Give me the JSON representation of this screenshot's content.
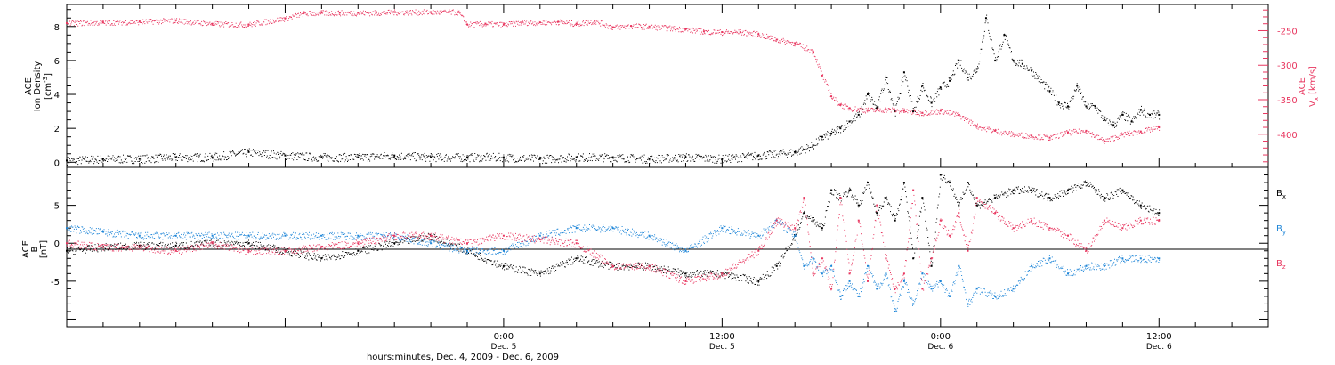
{
  "colors": {
    "black": "#000000",
    "pink": "#e8365f",
    "blue": "#1f86d8"
  },
  "xaxis": {
    "title": "hours:minutes, Dec. 4, 2009 - Dec. 6, 2009",
    "ticks": [
      {
        "hour": 24,
        "time": "0:00",
        "date": "Dec. 5"
      },
      {
        "hour": 36,
        "time": "12:00",
        "date": "Dec. 5"
      },
      {
        "hour": 48,
        "time": "0:00",
        "date": "Dec. 6"
      },
      {
        "hour": 60,
        "time": "12:00",
        "date": "Dec. 6"
      }
    ]
  },
  "panel_top": {
    "left_label_line1": "ACE",
    "left_label_line2": "Ion Density",
    "left_label_units": "[cm",
    "left_label_sup": "-3",
    "left_label_close": "]",
    "right_label_line1": "ACE",
    "right_label_main": "V",
    "right_label_sub": "x",
    "right_label_units": "[km/s]",
    "left_ticks": [
      "0",
      "2",
      "4",
      "6",
      "8"
    ],
    "right_ticks": [
      "-250",
      "-300",
      "-350",
      "-400"
    ]
  },
  "panel_bottom": {
    "label_line1": "ACE",
    "label_main": "B",
    "label_units": "[nT]",
    "ticks": [
      "5",
      "0",
      "-5"
    ],
    "legend": [
      {
        "main": "B",
        "sub": "x",
        "color": "#000000"
      },
      {
        "main": "B",
        "sub": "y",
        "color": "#1f86d8"
      },
      {
        "main": "B",
        "sub": "z",
        "color": "#e8365f"
      }
    ]
  },
  "chart_data": [
    {
      "type": "scatter",
      "xlabel": "hours:minutes, Dec. 4, 2009 - Dec. 6, 2009",
      "xlim": [
        "Dec. 4 00:00",
        "Dec. 6 18:00"
      ],
      "y_left_label": "ACE Ion Density [cm-3]",
      "ylim_left": [
        -0.3,
        9.3
      ],
      "y_right_label": "ACE Vx [km/s]",
      "ylim_right": [
        -448,
        -212
      ],
      "series": [
        {
          "name": "Ion Density",
          "axis": "left",
          "color": "#000000",
          "x": [
            0,
            2,
            4,
            6,
            8,
            10,
            12,
            14,
            16,
            18,
            20,
            22,
            24,
            26,
            28,
            30,
            32,
            34,
            36,
            38,
            40,
            41,
            41.5,
            42,
            42.5,
            43,
            43.5,
            44,
            44.5,
            45,
            45.5,
            46,
            46.5,
            47,
            47.5,
            48,
            48.5,
            49,
            49.5,
            50,
            50.5,
            51,
            51.5,
            52,
            52.5,
            53,
            54,
            54.5,
            55,
            55.5,
            56,
            56.5,
            57,
            57.5,
            58,
            58.5,
            59,
            59.5,
            60
          ],
          "y": [
            0.1,
            0.2,
            0.2,
            0.3,
            0.3,
            0.6,
            0.4,
            0.3,
            0.3,
            0.4,
            0.3,
            0.3,
            0.3,
            0.2,
            0.3,
            0.3,
            0.2,
            0.3,
            0.2,
            0.4,
            0.6,
            1,
            1.5,
            1.7,
            2,
            2.4,
            2.8,
            4,
            3.2,
            5,
            3,
            5.3,
            3,
            4.5,
            3.5,
            4.4,
            4.8,
            6,
            5,
            5.5,
            8.5,
            6,
            7.5,
            6,
            5.8,
            5.4,
            4.2,
            3.5,
            3.3,
            4.5,
            3.3,
            3.3,
            2.5,
            2.2,
            2.8,
            2.4,
            3.1,
            2.8,
            2.8
          ]
        },
        {
          "name": "Vx",
          "axis": "right",
          "color": "#e8365f",
          "x": [
            0,
            2,
            4,
            6,
            8,
            10,
            12,
            13,
            14,
            15,
            16,
            17,
            18,
            20,
            21,
            21.5,
            22,
            23,
            24,
            25,
            26,
            27,
            28,
            29,
            30,
            31,
            32,
            33,
            34,
            35,
            36,
            37,
            38,
            39,
            40,
            41,
            41.5,
            42,
            42.5,
            43,
            44,
            45,
            46,
            47,
            48,
            49,
            50,
            51,
            52,
            53,
            54,
            55,
            56,
            57,
            58,
            59,
            60
          ],
          "y": [
            -239,
            -238,
            -237,
            -235,
            -240,
            -241,
            -232,
            -225,
            -224,
            -224,
            -224,
            -224,
            -223,
            -223,
            -223,
            -223,
            -241,
            -240,
            -241,
            -238,
            -238,
            -237,
            -240,
            -236,
            -245,
            -243,
            -244,
            -246,
            -248,
            -251,
            -252,
            -252,
            -255,
            -263,
            -268,
            -280,
            -315,
            -345,
            -357,
            -362,
            -365,
            -364,
            -366,
            -369,
            -366,
            -372,
            -388,
            -395,
            -400,
            -402,
            -405,
            -397,
            -395,
            -410,
            -400,
            -396,
            -390
          ]
        }
      ]
    },
    {
      "type": "scatter",
      "xlabel": "hours:minutes, Dec. 4, 2009 - Dec. 6, 2009",
      "xlim": [
        "Dec. 4 00:00",
        "Dec. 6 18:00"
      ],
      "ylabel": "ACE B [nT]",
      "ylim": [
        -11,
        10
      ],
      "series": [
        {
          "name": "Bx",
          "color": "#000000",
          "x": [
            0,
            2,
            4,
            6,
            8,
            10,
            12,
            14,
            16,
            18,
            20,
            22,
            24,
            26,
            28,
            30,
            32,
            34,
            36,
            38,
            39,
            40,
            40.5,
            41,
            41.5,
            42,
            42.5,
            43,
            43.5,
            44,
            44.5,
            45,
            45.5,
            46,
            46.5,
            47,
            47.5,
            48,
            48.5,
            49,
            49.5,
            50,
            51,
            52,
            53,
            54,
            55,
            56,
            57,
            58,
            59,
            60
          ],
          "y": [
            -1,
            -0.5,
            -0.3,
            -0.3,
            0,
            0,
            -1,
            -2,
            -1,
            0,
            1,
            -1,
            -3,
            -4,
            -2,
            -3,
            -3,
            -4,
            -4,
            -5,
            -3,
            1,
            4,
            3,
            2,
            7,
            6,
            7,
            5,
            8,
            4,
            6,
            3,
            8,
            -2,
            6,
            -3,
            9,
            8,
            5,
            8,
            5,
            6,
            7,
            7,
            6,
            7,
            8,
            6,
            7,
            5,
            4
          ]
        },
        {
          "name": "By",
          "color": "#1f86d8",
          "x": [
            0,
            2,
            4,
            6,
            8,
            10,
            12,
            14,
            16,
            18,
            20,
            22,
            24,
            26,
            28,
            30,
            32,
            34,
            36,
            38,
            39,
            40,
            40.5,
            41,
            41.5,
            42,
            42.5,
            43,
            43.5,
            44,
            44.5,
            45,
            45.5,
            46,
            46.5,
            47,
            47.5,
            48,
            48.5,
            49,
            49.5,
            50,
            51,
            52,
            53,
            54,
            55,
            56,
            57,
            58,
            59,
            60
          ],
          "y": [
            2,
            1.5,
            1,
            1,
            1,
            1,
            1,
            1,
            1,
            1,
            0,
            -1,
            -1,
            1,
            2,
            2,
            1,
            -1,
            2,
            1,
            3,
            1,
            -3,
            -2,
            -4,
            -3,
            -7,
            -5,
            -7,
            -3,
            -6,
            -4,
            -9,
            -5,
            -8,
            -4,
            -6,
            -5,
            -7,
            -3,
            -8,
            -6,
            -7,
            -6,
            -3,
            -2,
            -4,
            -3,
            -3,
            -2,
            -2,
            -2
          ]
        },
        {
          "name": "Bz",
          "color": "#e8365f",
          "x": [
            0,
            2,
            4,
            6,
            8,
            10,
            12,
            14,
            16,
            18,
            20,
            22,
            24,
            26,
            28,
            30,
            32,
            34,
            36,
            38,
            39,
            40,
            40.5,
            41,
            41.5,
            42,
            42.5,
            43,
            43.5,
            44,
            44.5,
            45,
            45.5,
            46,
            46.5,
            47,
            47.5,
            48,
            48.5,
            49,
            49.5,
            50,
            51,
            52,
            53,
            54,
            55,
            56,
            57,
            58,
            59,
            60
          ],
          "y": [
            0,
            -0.5,
            -0.5,
            -1,
            0,
            -1,
            -1,
            -0.5,
            0,
            1,
            1,
            0,
            1,
            0.5,
            0,
            -3,
            -3,
            -5,
            -4,
            -1,
            3,
            2,
            6,
            -4,
            -2,
            -6,
            6,
            -4,
            3,
            -5,
            5,
            -2,
            -6,
            -4,
            7,
            -6,
            -2,
            3,
            1,
            4,
            -1,
            6,
            4,
            2,
            3,
            2,
            1,
            -1,
            3,
            2,
            3,
            3
          ]
        }
      ]
    }
  ]
}
